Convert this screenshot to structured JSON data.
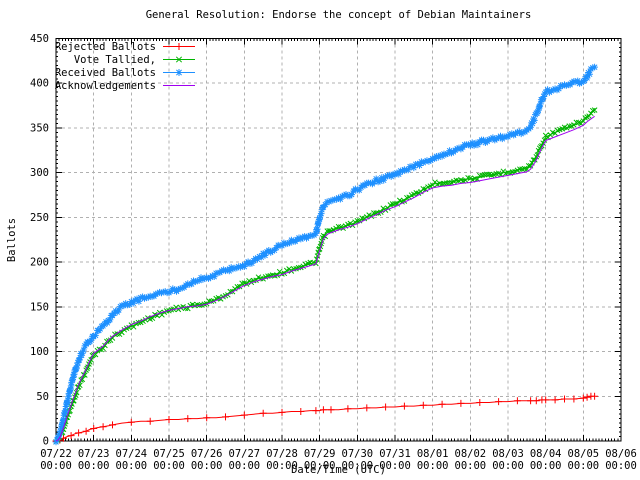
{
  "title": "General Resolution: Endorse the concept of Debian Maintainers",
  "background": "#ffffff",
  "axes": {
    "y_label": "Ballots",
    "x_label": "Date/Time (UTC)",
    "y_ticks": [
      0,
      50,
      100,
      150,
      200,
      250,
      300,
      350,
      400,
      450
    ],
    "x_tick_dates": [
      "07/22",
      "07/23",
      "07/24",
      "07/25",
      "07/26",
      "07/27",
      "07/28",
      "07/29",
      "07/30",
      "07/31",
      "08/01",
      "08/02",
      "08/03",
      "08/04",
      "08/05",
      "08/06"
    ],
    "x_tick_times": [
      "00:00",
      "00:00",
      "00:00",
      "00:00",
      "00:00",
      "00:00",
      "00:00",
      "00:00",
      "00:00",
      "00:00",
      "00:00",
      "00:00",
      "00:00",
      "00:00",
      "00:00",
      "00:00"
    ]
  },
  "legend": [
    {
      "label": "Rejected Ballots",
      "color": "#ff0000",
      "marker": "plus"
    },
    {
      "label": "Vote Tallied,",
      "color": "#00b400",
      "marker": "cross"
    },
    {
      "label": "Received Ballots",
      "color": "#1e90ff",
      "marker": "star"
    },
    {
      "label": "Acknowledgements",
      "color": "#a000f0",
      "marker": "none"
    }
  ],
  "chart_data": {
    "type": "line",
    "title": "General Resolution: Endorse the concept of Debian Maintainers",
    "xlabel": "Date/Time (UTC)",
    "ylabel": "Ballots",
    "ylim": [
      0,
      450
    ],
    "xlim_labels": [
      "07/22 00:00",
      "08/06 00:00"
    ],
    "x_unit": "days since 07/22 00:00 UTC",
    "grid": true,
    "legend_position": "top-left",
    "x": [
      0,
      0.05,
      0.1,
      0.15,
      0.2,
      0.3,
      0.4,
      0.5,
      0.6,
      0.7,
      0.8,
      0.9,
      1.0,
      1.1,
      1.25,
      1.4,
      1.5,
      1.75,
      2.0,
      2.25,
      2.5,
      2.75,
      3.0,
      3.25,
      3.5,
      3.75,
      4.0,
      4.25,
      4.5,
      4.75,
      5.0,
      5.25,
      5.5,
      5.75,
      6.0,
      6.25,
      6.5,
      6.75,
      6.9,
      7.0,
      7.1,
      7.2,
      7.3,
      7.5,
      7.75,
      8.0,
      8.25,
      8.5,
      8.75,
      9.0,
      9.25,
      9.5,
      9.75,
      10.0,
      10.25,
      10.5,
      10.75,
      11.0,
      11.25,
      11.5,
      11.75,
      12.0,
      12.25,
      12.5,
      12.6,
      12.75,
      12.9,
      13.0,
      13.25,
      13.5,
      13.75,
      14.0,
      14.1,
      14.2,
      14.3
    ],
    "series": [
      {
        "name": "Rejected Ballots",
        "color": "#ff0000",
        "marker": "plus",
        "values": [
          0,
          0,
          1,
          2,
          3,
          5,
          6,
          8,
          9,
          10,
          11,
          13,
          14,
          15,
          16,
          17,
          18,
          20,
          21,
          22,
          22,
          23,
          24,
          24,
          25,
          25,
          26,
          26,
          27,
          28,
          29,
          30,
          31,
          31,
          32,
          33,
          33,
          34,
          34,
          34,
          35,
          35,
          35,
          35,
          36,
          36,
          37,
          37,
          38,
          38,
          39,
          39,
          40,
          40,
          41,
          41,
          42,
          42,
          43,
          43,
          44,
          44,
          45,
          45,
          45,
          45,
          46,
          46,
          46,
          47,
          47,
          48,
          49,
          50,
          50
        ]
      },
      {
        "name": "Vote Tallied,",
        "color": "#00b400",
        "marker": "cross",
        "values": [
          0,
          1,
          4,
          8,
          14,
          27,
          38,
          50,
          61,
          70,
          78,
          88,
          97,
          100,
          105,
          112,
          116,
          123,
          128,
          133,
          138,
          142,
          146,
          148,
          150,
          152,
          154,
          158,
          163,
          170,
          176,
          180,
          183,
          186,
          188,
          192,
          195,
          198,
          200,
          215,
          228,
          233,
          235,
          238,
          241,
          245,
          250,
          255,
          260,
          265,
          270,
          275,
          281,
          287,
          289,
          290,
          292,
          293,
          295,
          297,
          299,
          301,
          303,
          305,
          308,
          318,
          332,
          340,
          345,
          349,
          353,
          358,
          362,
          366,
          370
        ]
      },
      {
        "name": "Received Ballots",
        "color": "#1e90ff",
        "marker": "star",
        "values": [
          0,
          3,
          8,
          15,
          25,
          45,
          62,
          78,
          90,
          100,
          107,
          113,
          118,
          122,
          128,
          136,
          141,
          150,
          155,
          159,
          162,
          165,
          167,
          170,
          176,
          180,
          182,
          186,
          191,
          194,
          196,
          202,
          208,
          214,
          219,
          224,
          227,
          230,
          232,
          250,
          262,
          266,
          268,
          270,
          275,
          281,
          287,
          291,
          294,
          298,
          302,
          307,
          312,
          316,
          320,
          324,
          328,
          331,
          334,
          336,
          339,
          341,
          344,
          348,
          352,
          365,
          382,
          390,
          394,
          397,
          400,
          403,
          408,
          414,
          418
        ]
      },
      {
        "name": "Acknowledgements",
        "color": "#a000f0",
        "marker": "none",
        "values": [
          0,
          1,
          4,
          9,
          15,
          28,
          40,
          52,
          63,
          72,
          80,
          90,
          98,
          101,
          106,
          113,
          117,
          124,
          130,
          134,
          139,
          143,
          146,
          148,
          150,
          151,
          153,
          157,
          162,
          168,
          174,
          178,
          181,
          184,
          186,
          190,
          193,
          196,
          198,
          213,
          226,
          231,
          233,
          236,
          239,
          243,
          248,
          253,
          258,
          262,
          267,
          272,
          278,
          283,
          285,
          286,
          288,
          289,
          291,
          293,
          295,
          297,
          299,
          301,
          304,
          314,
          328,
          336,
          340,
          344,
          348,
          353,
          357,
          360,
          363
        ]
      }
    ]
  }
}
